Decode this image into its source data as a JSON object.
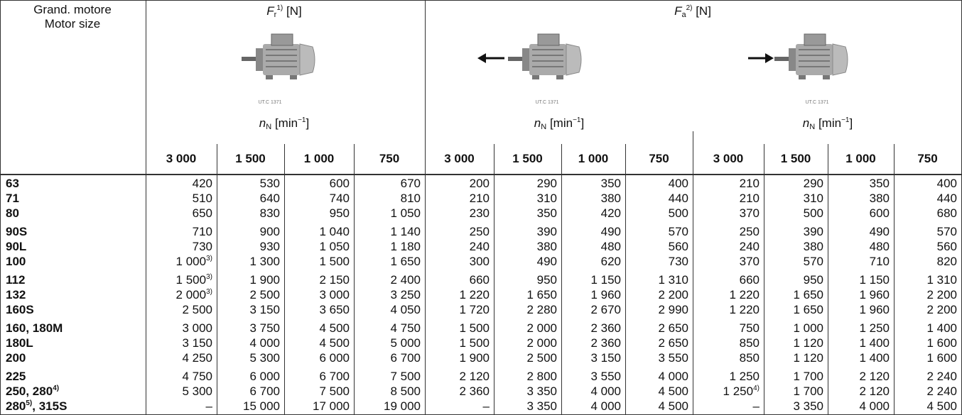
{
  "header": {
    "motor_size": [
      "Grand. motore",
      "Motor size"
    ],
    "fr": [
      {
        "italic": "F"
      },
      {
        "sub": "r"
      },
      {
        "sup": "1)"
      },
      {
        "text": " [N]"
      }
    ],
    "fa": [
      {
        "italic": "F"
      },
      {
        "sub": "a"
      },
      {
        "sup": "2)"
      },
      {
        "text": " [N]"
      }
    ],
    "speed": [
      {
        "italic": "n"
      },
      {
        "sub": "N"
      },
      {
        "text": " [min"
      },
      {
        "sup": "−1"
      },
      {
        "text": "]"
      }
    ],
    "image_caption": "UT.C 1371",
    "speeds": [
      "3 000",
      "1 500",
      "1 000",
      "750"
    ]
  },
  "groups": [
    [
      {
        "label": "63",
        "values": [
          "420",
          "530",
          "600",
          "670",
          "200",
          "290",
          "350",
          "400",
          "210",
          "290",
          "350",
          "400"
        ]
      },
      {
        "label": "71",
        "values": [
          "510",
          "640",
          "740",
          "810",
          "210",
          "310",
          "380",
          "440",
          "210",
          "310",
          "380",
          "440"
        ]
      },
      {
        "label": "80",
        "values": [
          "650",
          "830",
          "950",
          "1 050",
          "230",
          "350",
          "420",
          "500",
          "370",
          "500",
          "600",
          "680"
        ]
      }
    ],
    [
      {
        "label": "90S",
        "values": [
          "710",
          "900",
          "1 040",
          "1 140",
          "250",
          "390",
          "490",
          "570",
          "250",
          "390",
          "490",
          "570"
        ]
      },
      {
        "label": "90L",
        "values": [
          "730",
          "930",
          "1 050",
          "1 180",
          "240",
          "380",
          "480",
          "560",
          "240",
          "380",
          "480",
          "560"
        ]
      },
      {
        "label": "100",
        "values": [
          [
            {
              "text": "1 000"
            },
            {
              "sup": "3)"
            }
          ],
          "1 300",
          "1 500",
          "1 650",
          "300",
          "490",
          "620",
          "730",
          "370",
          "570",
          "710",
          "820"
        ]
      }
    ],
    [
      {
        "label": "112",
        "values": [
          [
            {
              "text": "1 500"
            },
            {
              "sup": "3)"
            }
          ],
          "1 900",
          "2 150",
          "2 400",
          "660",
          "950",
          "1 150",
          "1 310",
          "660",
          "950",
          "1 150",
          "1 310"
        ]
      },
      {
        "label": "132",
        "values": [
          [
            {
              "text": "2 000"
            },
            {
              "sup": "3)"
            }
          ],
          "2 500",
          "3 000",
          "3 250",
          "1 220",
          "1 650",
          "1 960",
          "2 200",
          "1 220",
          "1 650",
          "1 960",
          "2 200"
        ]
      },
      {
        "label": "160S",
        "values": [
          "2 500",
          "3 150",
          "3 650",
          "4 050",
          "1 720",
          "2 280",
          "2 670",
          "2 990",
          "1 220",
          "1 650",
          "1 960",
          "2 200"
        ]
      }
    ],
    [
      {
        "label": "160, 180M",
        "values": [
          "3 000",
          "3 750",
          "4 500",
          "4 750",
          "1 500",
          "2 000",
          "2 360",
          "2 650",
          "750",
          "1 000",
          "1 250",
          "1 400"
        ]
      },
      {
        "label": "180L",
        "values": [
          "3 150",
          "4 000",
          "4 500",
          "5 000",
          "1 500",
          "2 000",
          "2 360",
          "2 650",
          "850",
          "1 120",
          "1 400",
          "1 600"
        ]
      },
      {
        "label": "200",
        "values": [
          "4 250",
          "5 300",
          "6 000",
          "6 700",
          "1 900",
          "2 500",
          "3 150",
          "3 550",
          "850",
          "1 120",
          "1 400",
          "1 600"
        ]
      }
    ],
    [
      {
        "label": "225",
        "values": [
          "4 750",
          "6 000",
          "6 700",
          "7 500",
          "2 120",
          "2 800",
          "3 550",
          "4 000",
          "1 250",
          "1 700",
          "2 120",
          "2 240"
        ]
      },
      {
        "label": [
          {
            "text": "250, 280"
          },
          {
            "sup": "4)"
          }
        ],
        "values": [
          "5 300",
          "6 700",
          "7 500",
          "8 500",
          "2 360",
          "3 350",
          "4 000",
          "4 500",
          [
            {
              "text": "1 250"
            },
            {
              "sup": "4)"
            }
          ],
          "1 700",
          "2 120",
          "2 240"
        ]
      },
      {
        "label": [
          {
            "text": "280"
          },
          {
            "sup": "5)"
          },
          {
            "text": ", 315S"
          }
        ],
        "values": [
          "–",
          "15 000",
          "17 000",
          "19 000",
          "–",
          "3 350",
          "4 000",
          "4 500",
          "–",
          "3 350",
          "4 000",
          "4 500"
        ]
      }
    ]
  ]
}
